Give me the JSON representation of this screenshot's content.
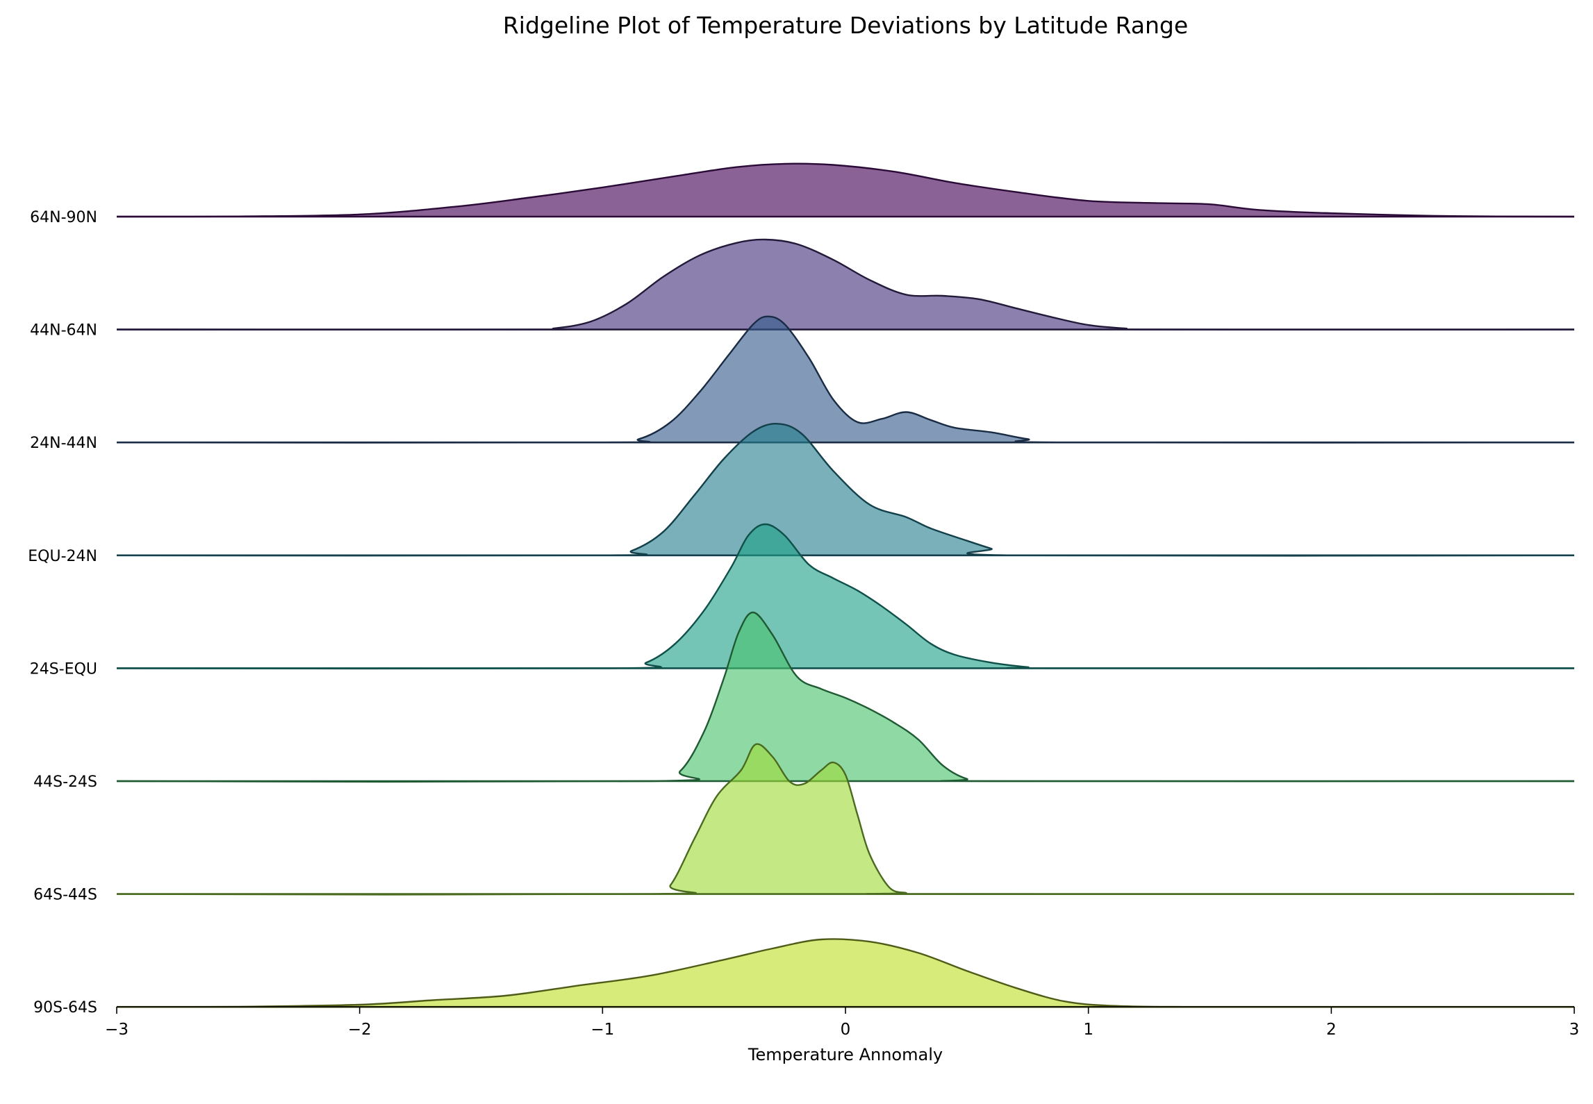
{
  "chart_data": {
    "type": "ridgeline",
    "title": "Ridgeline Plot of Temperature Deviations by Latitude Range",
    "xlabel": "Temperature Annomaly",
    "ylabel": "",
    "xlim": [
      -3,
      3
    ],
    "xticks": [
      -3,
      -2,
      -1,
      0,
      1,
      2,
      3
    ],
    "xtick_labels": [
      "−3",
      "−2",
      "−1",
      "0",
      "1",
      "2",
      "3"
    ],
    "grid": false,
    "legend": "none",
    "series": [
      {
        "name": "64N-90N",
        "color": "#440154",
        "edge": "#2a0a36",
        "x": [
          -3,
          -2.5,
          -2,
          -1.6,
          -1.3,
          -1,
          -0.7,
          -0.45,
          -0.25,
          -0.05,
          0.2,
          0.45,
          0.7,
          1.0,
          1.3,
          1.5,
          1.7,
          2.0,
          2.5,
          3
        ],
        "y": [
          0,
          0.002,
          0.02,
          0.09,
          0.17,
          0.26,
          0.36,
          0.44,
          0.47,
          0.46,
          0.4,
          0.3,
          0.22,
          0.14,
          0.12,
          0.11,
          0.06,
          0.03,
          0.005,
          0
        ]
      },
      {
        "name": "44N-64N",
        "color": "#46327e",
        "edge": "#231a3a",
        "x": [
          -3,
          -1.3,
          -1.2,
          -1.05,
          -0.9,
          -0.75,
          -0.6,
          -0.45,
          -0.33,
          -0.2,
          -0.05,
          0.1,
          0.25,
          0.4,
          0.55,
          0.7,
          0.85,
          1.0,
          1.15,
          1.3,
          3
        ],
        "y": [
          0,
          0,
          0.01,
          0.07,
          0.23,
          0.47,
          0.66,
          0.77,
          0.8,
          0.76,
          0.62,
          0.44,
          0.31,
          0.3,
          0.27,
          0.19,
          0.11,
          0.04,
          0.01,
          0,
          0
        ]
      },
      {
        "name": "24N-44N",
        "color": "#365c8d",
        "edge": "#1a2c44",
        "x": [
          -3,
          -1.0,
          -0.85,
          -0.72,
          -0.6,
          -0.48,
          -0.38,
          -0.32,
          -0.25,
          -0.15,
          -0.05,
          0.05,
          0.15,
          0.25,
          0.35,
          0.45,
          0.6,
          0.75,
          0.9,
          3
        ],
        "y": [
          0,
          0,
          0.03,
          0.18,
          0.45,
          0.78,
          1.05,
          1.12,
          1.05,
          0.75,
          0.38,
          0.18,
          0.21,
          0.27,
          0.2,
          0.13,
          0.09,
          0.03,
          0,
          0
        ]
      },
      {
        "name": "EQU-24N",
        "color": "#277f8e",
        "edge": "#13404a",
        "x": [
          -3,
          -1.0,
          -0.88,
          -0.75,
          -0.62,
          -0.5,
          -0.38,
          -0.28,
          -0.18,
          -0.05,
          0.1,
          0.25,
          0.35,
          0.5,
          0.6,
          0.7,
          3
        ],
        "y": [
          0,
          0,
          0.04,
          0.21,
          0.54,
          0.86,
          1.1,
          1.17,
          1.08,
          0.75,
          0.45,
          0.34,
          0.24,
          0.13,
          0.06,
          0,
          0
        ]
      },
      {
        "name": "24S-EQU",
        "color": "#1fa187",
        "edge": "#10504a",
        "x": [
          -3,
          -0.95,
          -0.82,
          -0.7,
          -0.58,
          -0.47,
          -0.4,
          -0.33,
          -0.25,
          -0.15,
          -0.05,
          0.05,
          0.15,
          0.25,
          0.35,
          0.45,
          0.6,
          0.75,
          0.85,
          3
        ],
        "y": [
          0,
          0,
          0.05,
          0.22,
          0.52,
          0.9,
          1.18,
          1.28,
          1.18,
          0.92,
          0.8,
          0.69,
          0.55,
          0.39,
          0.22,
          0.12,
          0.05,
          0.01,
          0,
          0
        ]
      },
      {
        "name": "44S-24S",
        "color": "#4ac16d",
        "edge": "#1f5a33",
        "x": [
          -3,
          -0.8,
          -0.68,
          -0.58,
          -0.5,
          -0.44,
          -0.38,
          -0.3,
          -0.2,
          -0.1,
          0.0,
          0.1,
          0.2,
          0.3,
          0.4,
          0.5,
          0.6,
          3
        ],
        "y": [
          0,
          0,
          0.09,
          0.45,
          0.92,
          1.32,
          1.5,
          1.3,
          0.93,
          0.82,
          0.74,
          0.64,
          0.52,
          0.37,
          0.14,
          0.02,
          0,
          0
        ]
      },
      {
        "name": "64S-44S",
        "color": "#a0da39",
        "edge": "#4a6b1f",
        "x": [
          -3,
          -0.8,
          -0.72,
          -0.62,
          -0.53,
          -0.43,
          -0.37,
          -0.3,
          -0.23,
          -0.17,
          -0.1,
          -0.05,
          0.0,
          0.05,
          0.1,
          0.18,
          0.25,
          0.3,
          3
        ],
        "y": [
          0,
          0,
          0.08,
          0.5,
          0.87,
          1.1,
          1.33,
          1.22,
          1.0,
          0.98,
          1.1,
          1.17,
          1.06,
          0.7,
          0.35,
          0.06,
          0.01,
          0,
          0
        ]
      },
      {
        "name": "90S-64S",
        "color": "#bddf26",
        "edge": "#4e5c18",
        "x": [
          -3,
          -2.5,
          -2.0,
          -1.7,
          -1.4,
          -1.1,
          -0.8,
          -0.5,
          -0.3,
          -0.1,
          0.1,
          0.3,
          0.5,
          0.7,
          0.9,
          1.1,
          1.4,
          2.0,
          3
        ],
        "y": [
          0,
          0.002,
          0.02,
          0.06,
          0.1,
          0.19,
          0.28,
          0.42,
          0.52,
          0.6,
          0.58,
          0.48,
          0.32,
          0.17,
          0.05,
          0.01,
          0,
          0,
          0
        ]
      }
    ]
  }
}
